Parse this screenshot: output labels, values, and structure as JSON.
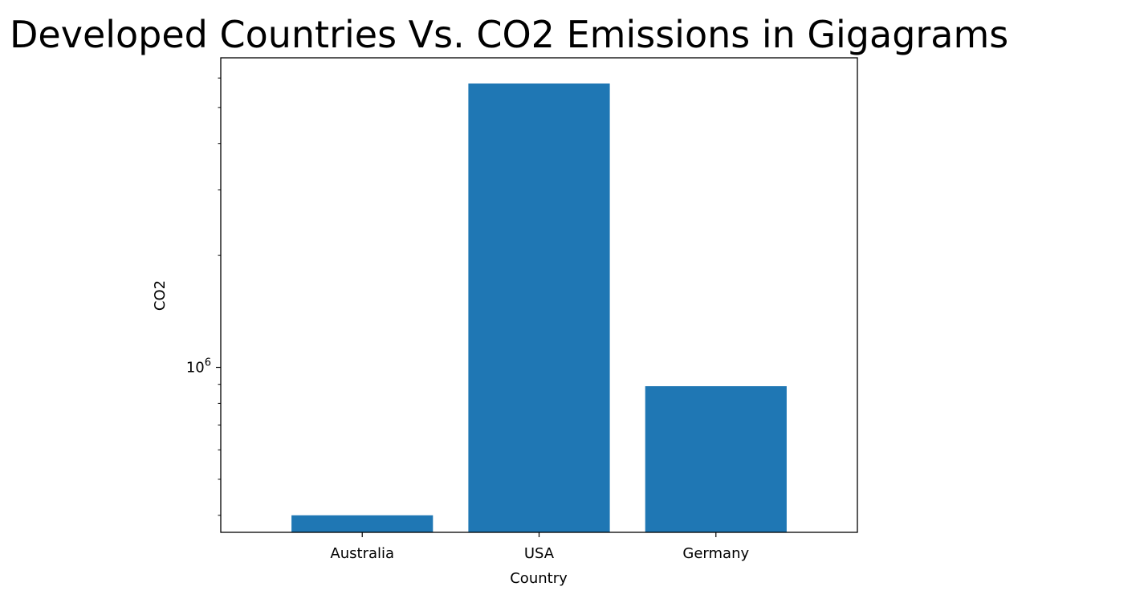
{
  "chart_data": {
    "type": "bar",
    "title": "Developed Countries Vs. CO2 Emissions in Gigagrams",
    "xlabel": "Country",
    "ylabel": "CO2",
    "yscale": "log",
    "categories": [
      "Australia",
      "USA",
      "Germany"
    ],
    "values": [
      400000,
      5800000,
      890000
    ],
    "ylim": [
      360000,
      6800000
    ],
    "yticks": [
      {
        "value": 1000000,
        "base": "10",
        "exponent": "6"
      }
    ],
    "color": "#1f77b4",
    "grid": false,
    "legend": false
  }
}
